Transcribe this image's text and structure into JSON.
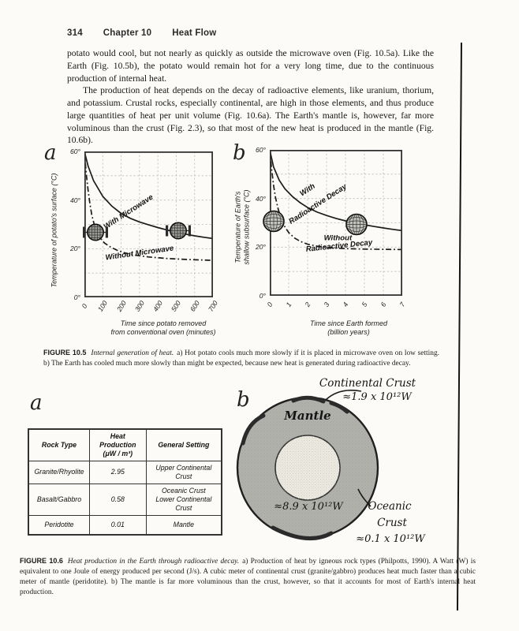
{
  "page": {
    "number": "314",
    "chapter": "Chapter 10",
    "title": "Heat Flow"
  },
  "body": {
    "paragraph1": "potato would cool, but not nearly as quickly as outside the microwave oven (Fig. 10.5a). Like the Earth (Fig. 10.5b), the potato would remain hot for a very long time, due to the continuous production of internal heat.",
    "paragraph2": "The production of heat depends on the decay of radioactive elements, like uranium, thorium, and potassium. Crustal rocks, especially continental, are high in those elements, and thus produce large quantities of heat per unit volume (Fig. 10.6a). The Earth's mantle is, however, far more voluminous than the crust (Fig. 2.3), so that most of the new heat is produced in the mantle (Fig. 10.6b)."
  },
  "figure_10_5": {
    "panel_a_label": "a",
    "panel_b_label": "b",
    "caption_label": "FIGURE 10.5",
    "caption_title": "Internal generation of heat.",
    "caption_text": "a) Hot potato cools much more slowly if it is placed in microwave oven on low setting. b) The Earth has cooled much more slowly than might be expected, because new heat is generated during radioactive decay."
  },
  "figure_10_6": {
    "panel_a_label": "a",
    "panel_b_label": "b",
    "caption_label": "FIGURE 10.6",
    "caption_title": "Heat production in the Earth through radioactive decay.",
    "caption_text": "a) Production of heat by igneous rock types (Philpotts, 1990). A Watt (W) is equivalent to one Joule of energy produced per second (J/s). A cubic meter of continental crust (granite/gabbro) produces heat much faster than a cubic meter of mantle (peridotite). b) The mantle is far more voluminous than the crust, however, so that it accounts for most of Earth's internal heat production.",
    "table": {
      "headers": [
        "Rock Type",
        "Heat Production\n(μW / m³)",
        "General Setting"
      ],
      "rows": [
        [
          "Granite/Rhyolite",
          "2.95",
          "Upper Continental Crust"
        ],
        [
          "Basalt/Gabbro",
          "0.58",
          "Oceanic Crust\nLower Continental Crust"
        ],
        [
          "Peridotite",
          "0.01",
          "Mantle"
        ]
      ]
    },
    "donut": {
      "mantle_label": "Mantle",
      "mantle_value": "≈8.9 x 10¹²W",
      "continental_label": "Continental Crust",
      "continental_value": "≈1.9 x 10¹²W",
      "oceanic_label_line1": "Oceanic",
      "oceanic_label_line2": "Crust",
      "oceanic_value": "≈0.1 x 10¹²W"
    }
  },
  "chart_data": [
    {
      "id": "potato",
      "type": "line",
      "panel_label": "a",
      "xlabel": "Time since potato removed\nfrom conventional oven (minutes)",
      "ylabel": "Temperature of potato's surface (°C)",
      "xlim": [
        0,
        700
      ],
      "ylim": [
        0,
        60
      ],
      "xticks": [
        0,
        100,
        200,
        300,
        400,
        500,
        600,
        700
      ],
      "yticks": [
        0,
        20,
        40,
        60
      ],
      "ytick_labels": [
        "0°",
        "20°",
        "40°",
        "60°"
      ],
      "grid_x_step": 100,
      "grid_y_step": 10,
      "grid": true,
      "legend_position": "on-curve",
      "series": [
        {
          "name": "With Microwave",
          "style": "solid",
          "points": [
            [
              0,
              60
            ],
            [
              20,
              54
            ],
            [
              50,
              48
            ],
            [
              100,
              41.5
            ],
            [
              150,
              37.5
            ],
            [
              200,
              34.5
            ],
            [
              250,
              32.5
            ],
            [
              300,
              31
            ],
            [
              350,
              29.8
            ],
            [
              400,
              28.7
            ],
            [
              450,
              27.7
            ],
            [
              500,
              26.8
            ],
            [
              550,
              26
            ],
            [
              600,
              25.3
            ],
            [
              650,
              24.7
            ],
            [
              700,
              24.2
            ]
          ]
        },
        {
          "name": "Without Microwave",
          "style": "dashdot",
          "points": [
            [
              0,
              60
            ],
            [
              10,
              51
            ],
            [
              20,
              44
            ],
            [
              30,
              38.5
            ],
            [
              40,
              34
            ],
            [
              55,
              29.5
            ],
            [
              70,
              26.5
            ],
            [
              90,
              24
            ],
            [
              110,
              22.3
            ],
            [
              140,
              20.8
            ],
            [
              180,
              19.3
            ],
            [
              220,
              18.3
            ],
            [
              280,
              17.3
            ],
            [
              350,
              16.6
            ],
            [
              450,
              16
            ],
            [
              550,
              15.6
            ],
            [
              700,
              15.2
            ]
          ]
        }
      ],
      "labels": [
        {
          "text": "With Microwave",
          "x": 240,
          "y": 35,
          "rotate": -33
        },
        {
          "text": "Without Microwave",
          "x": 300,
          "y": 18.3,
          "rotate": -8
        }
      ],
      "markers": [
        {
          "icon": "potato-icon",
          "x": 60,
          "y": 26
        },
        {
          "icon": "potato-icon",
          "x": 510,
          "y": 26.5
        }
      ]
    },
    {
      "id": "earth",
      "type": "line",
      "panel_label": "b",
      "xlabel": "Time since Earth formed\n(billion years)",
      "ylabel": "Temperature of Earth's\nshallow subsurface (°C)",
      "xlim": [
        0,
        7
      ],
      "ylim": [
        0,
        60
      ],
      "xticks": [
        0,
        1,
        2,
        3,
        4,
        5,
        6,
        7
      ],
      "yticks": [
        0,
        20,
        40,
        60
      ],
      "ytick_labels": [
        "0°",
        "20°",
        "40°",
        "60°"
      ],
      "grid_x_step": 1,
      "grid_y_step": 10,
      "grid": true,
      "legend_position": "on-curve",
      "series": [
        {
          "name": "With Radioactive Decay",
          "style": "solid",
          "points": [
            [
              0,
              60
            ],
            [
              0.2,
              53
            ],
            [
              0.5,
              47.5
            ],
            [
              0.8,
              44
            ],
            [
              1.2,
              40.8
            ],
            [
              1.6,
              38.3
            ],
            [
              2,
              36.3
            ],
            [
              2.5,
              34.4
            ],
            [
              3,
              33
            ],
            [
              3.5,
              31.8
            ],
            [
              4,
              30.8
            ],
            [
              4.5,
              30
            ],
            [
              5,
              29.2
            ],
            [
              5.5,
              28.5
            ],
            [
              6,
              27.9
            ],
            [
              6.5,
              27.3
            ],
            [
              7,
              26.8
            ]
          ]
        },
        {
          "name": "Without Radioactive Decay",
          "style": "dashdot",
          "points": [
            [
              0,
              60
            ],
            [
              0.1,
              52
            ],
            [
              0.2,
              45.5
            ],
            [
              0.3,
              40.5
            ],
            [
              0.45,
              35.5
            ],
            [
              0.6,
              31.8
            ],
            [
              0.8,
              28.3
            ],
            [
              1,
              26
            ],
            [
              1.3,
              23.8
            ],
            [
              1.6,
              22.4
            ],
            [
              2,
              21.2
            ],
            [
              2.5,
              20.4
            ],
            [
              3,
              19.9
            ],
            [
              3.5,
              19.6
            ],
            [
              4,
              19.4
            ],
            [
              5,
              19.2
            ],
            [
              6,
              19.1
            ],
            [
              7,
              19
            ]
          ]
        }
      ],
      "labels": [
        {
          "text": "With",
          "x": 2.0,
          "y": 43.5,
          "rotate": -33
        },
        {
          "text": "Radioactive Decay",
          "x": 2.55,
          "y": 37.5,
          "rotate": -33
        },
        {
          "text": "Without",
          "x": 3.6,
          "y": 23.8,
          "rotate": 0
        },
        {
          "text": "Radioactive Decay",
          "x": 3.65,
          "y": 20.4,
          "rotate": -6
        }
      ],
      "markers": [
        {
          "icon": "earth-icon",
          "x": 0.2,
          "y": 30
        },
        {
          "icon": "earth-icon",
          "x": 4.6,
          "y": 28.5
        }
      ]
    }
  ]
}
